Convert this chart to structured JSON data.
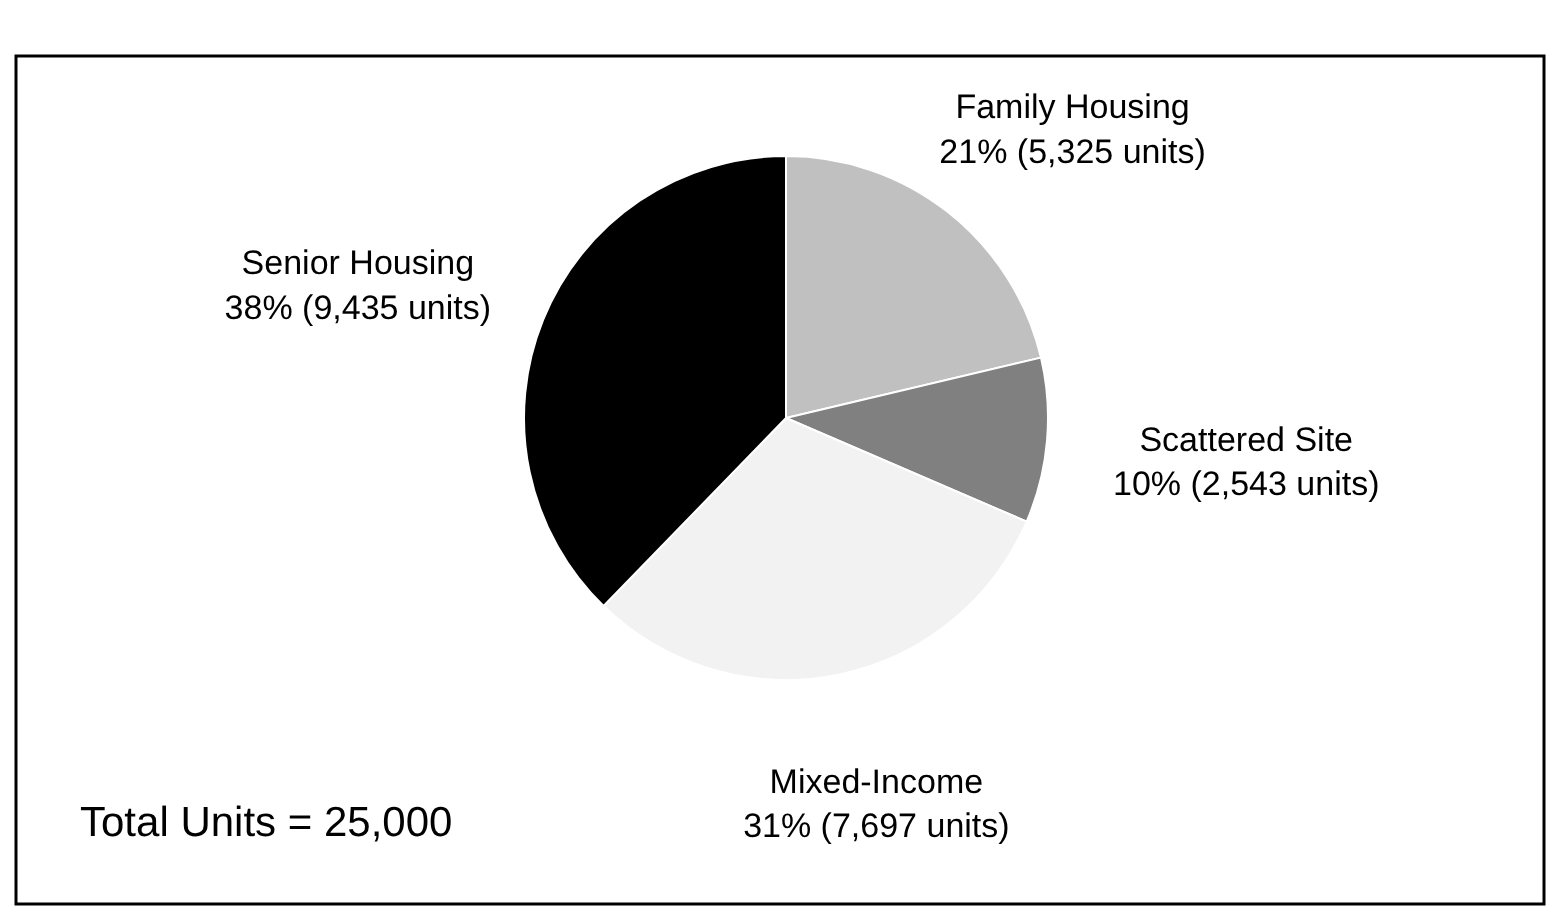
{
  "chart_data": {
    "type": "pie",
    "categories": [
      "Family Housing",
      "Scattered Site",
      "Mixed-Income",
      "Senior Housing"
    ],
    "values": [
      5325,
      2543,
      7697,
      9435
    ],
    "colors": [
      "#c0c0c0",
      "#808080",
      "#f2f2f2",
      "#000000"
    ],
    "value_labels": [
      "21% (5,325 units)",
      "10% (2,543 units)",
      "31% (7,697 units)",
      "38% (9,435 units)"
    ],
    "annotations": [
      "Total Units = 25,000"
    ]
  }
}
